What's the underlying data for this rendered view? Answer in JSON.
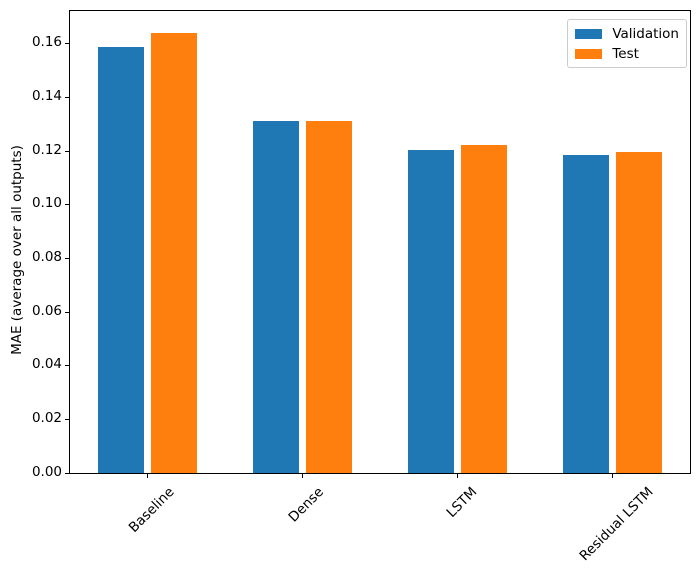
{
  "chart_data": {
    "type": "bar",
    "title": "",
    "xlabel": "",
    "ylabel": "MAE (average over all outputs)",
    "categories": [
      "Baseline",
      "Dense",
      "LSTM",
      "Residual LSTM"
    ],
    "series": [
      {
        "name": "Validation",
        "color": "#1f77b4",
        "values": [
          0.1589,
          0.1313,
          0.1204,
          0.1184
        ]
      },
      {
        "name": "Test",
        "color": "#ff7f0e",
        "values": [
          0.1639,
          0.1311,
          0.1221,
          0.1198
        ]
      }
    ],
    "ylim": [
      0,
      0.1722
    ],
    "yticks": [
      0.0,
      0.02,
      0.04,
      0.06,
      0.08,
      0.1,
      0.12,
      0.14,
      0.16
    ],
    "ytick_labels": [
      "0.00",
      "0.02",
      "0.04",
      "0.06",
      "0.08",
      "0.10",
      "0.12",
      "0.14",
      "0.16"
    ],
    "xtick_rotation_deg": 45,
    "bar_width_frac": 0.3,
    "bar_offset_frac": 0.17,
    "grid": false,
    "legend": {
      "position": "upper right",
      "border_color": "#cccccc"
    },
    "axis_color": "#000000"
  }
}
